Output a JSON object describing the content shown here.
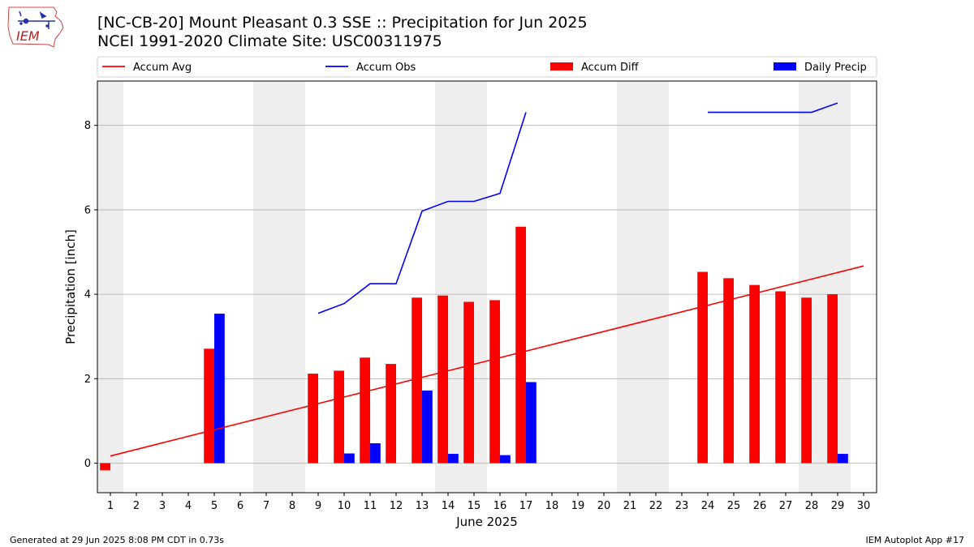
{
  "header": {
    "title_line1": "[NC-CB-20] Mount Pleasant 0.3 SSE :: Precipitation for Jun 2025",
    "title_line2": "NCEI 1991-2020 Climate Site: USC00311975"
  },
  "logo": {
    "text": "IEM"
  },
  "footer": {
    "generated": "Generated at 29 Jun 2025 8:08 PM CDT in 0.73s",
    "app": "IEM Autoplot App #17"
  },
  "colors": {
    "accum_avg": "#ff0000",
    "accum_obs": "#0000ff",
    "accum_diff": "#ff0000",
    "daily_precip": "#0000ff",
    "weekend_shade": "#eeeeee",
    "grid": "#b0b0b0"
  },
  "chart_data": {
    "type": "bar",
    "xlabel": "June 2025",
    "ylabel": "Precipitation [inch]",
    "xlim": [
      0.5,
      30.5
    ],
    "ylim": [
      -0.7,
      9.05
    ],
    "yticks": [
      0,
      2,
      4,
      6,
      8
    ],
    "grid": "horizontal",
    "legend_position": "top",
    "days": [
      1,
      2,
      3,
      4,
      5,
      6,
      7,
      8,
      9,
      10,
      11,
      12,
      13,
      14,
      15,
      16,
      17,
      18,
      19,
      20,
      21,
      22,
      23,
      24,
      25,
      26,
      27,
      28,
      29,
      30
    ],
    "weekend_days": [
      1,
      7,
      8,
      14,
      15,
      21,
      22,
      28,
      29
    ],
    "series": [
      {
        "name": "Accum Avg",
        "kind": "line",
        "x": [
          1,
          30
        ],
        "values": [
          0.17,
          4.67
        ]
      },
      {
        "name": "Accum Obs",
        "kind": "line",
        "segments": [
          {
            "x": [
              9,
              10,
              11,
              12,
              13,
              14,
              15,
              16,
              17
            ],
            "values": [
              3.55,
              3.78,
              4.25,
              4.25,
              5.97,
              6.2,
              6.2,
              6.39,
              8.31
            ]
          },
          {
            "x": [
              24,
              25,
              26,
              27,
              28,
              29
            ],
            "values": [
              8.31,
              8.31,
              8.31,
              8.31,
              8.31,
              8.53
            ]
          }
        ]
      },
      {
        "name": "Accum Diff",
        "kind": "bar",
        "x": [
          1,
          5,
          9,
          10,
          11,
          12,
          13,
          14,
          15,
          16,
          17,
          24,
          25,
          26,
          27,
          28,
          29
        ],
        "values": [
          -0.17,
          2.71,
          2.12,
          2.19,
          2.5,
          2.35,
          3.92,
          3.97,
          3.82,
          3.86,
          5.6,
          4.53,
          4.38,
          4.22,
          4.07,
          3.92,
          4.0
        ]
      },
      {
        "name": "Daily Precip",
        "kind": "bar",
        "x": [
          5,
          10,
          11,
          13,
          14,
          16,
          17,
          29
        ],
        "values": [
          3.54,
          0.23,
          0.47,
          1.72,
          0.22,
          0.19,
          1.92,
          0.22
        ]
      }
    ]
  }
}
